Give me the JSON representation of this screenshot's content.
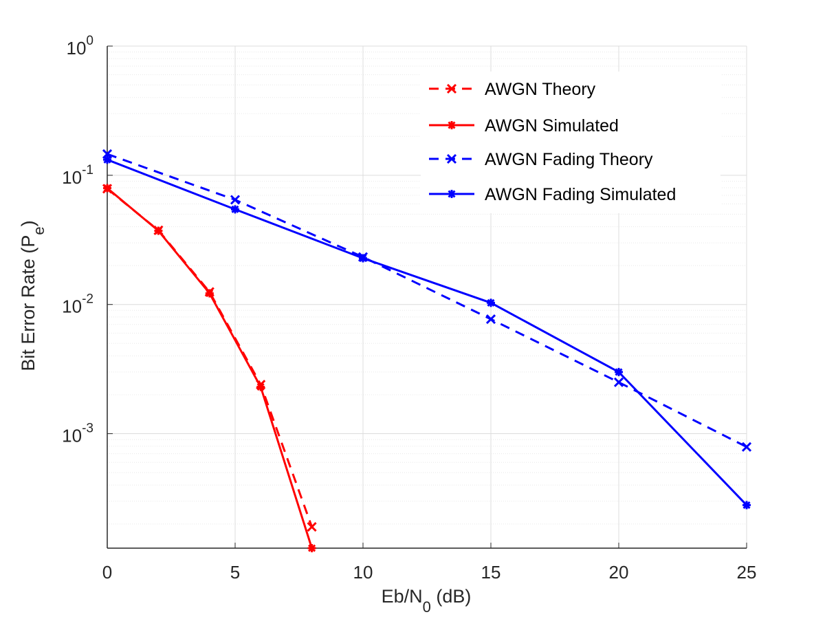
{
  "chart_data": {
    "type": "line",
    "xlabel_main": "Eb/N",
    "xlabel_sub": "0",
    "xlabel_tail": " (dB)",
    "ylabel_main": "Bit Error Rate (P",
    "ylabel_sub": "e",
    "ylabel_tail": ")",
    "xlim": [
      0,
      25
    ],
    "ylim": [
      0.00013,
      1
    ],
    "yscale": "log",
    "grid": true,
    "x_ticks": [
      0,
      5,
      10,
      15,
      20,
      25
    ],
    "x_tick_labels": [
      "0",
      "5",
      "10",
      "15",
      "20",
      "25"
    ],
    "y_ticks": [
      1,
      0.1,
      0.01,
      0.001
    ],
    "y_tick_bases": [
      "10",
      "10",
      "10",
      "10"
    ],
    "y_tick_exponents": [
      "0",
      "-1",
      "-2",
      "-3"
    ],
    "legend_position": "top-right",
    "series": [
      {
        "name": "AWGN Theory",
        "color": "#ff0000",
        "line": "dashed",
        "marker": "x",
        "x": [
          0,
          2,
          4,
          6,
          8
        ],
        "y": [
          0.0786,
          0.0375,
          0.0125,
          0.0024,
          0.00019
        ]
      },
      {
        "name": "AWGN Simulated",
        "color": "#ff0000",
        "line": "solid",
        "marker": "asterisk",
        "x": [
          0,
          2,
          4,
          6,
          8
        ],
        "y": [
          0.0795,
          0.0372,
          0.0122,
          0.0023,
          0.00013
        ]
      },
      {
        "name": "AWGN Fading Theory",
        "color": "#0000ff",
        "line": "dashed",
        "marker": "x",
        "x": [
          0,
          5,
          10,
          15,
          20,
          25
        ],
        "y": [
          0.146,
          0.0646,
          0.0233,
          0.0077,
          0.0025,
          0.00079
        ]
      },
      {
        "name": "AWGN Fading Simulated",
        "color": "#0000ff",
        "line": "solid",
        "marker": "asterisk",
        "x": [
          0,
          5,
          10,
          15,
          20,
          25
        ],
        "y": [
          0.132,
          0.0545,
          0.0228,
          0.0103,
          0.003,
          0.00028
        ]
      }
    ]
  }
}
